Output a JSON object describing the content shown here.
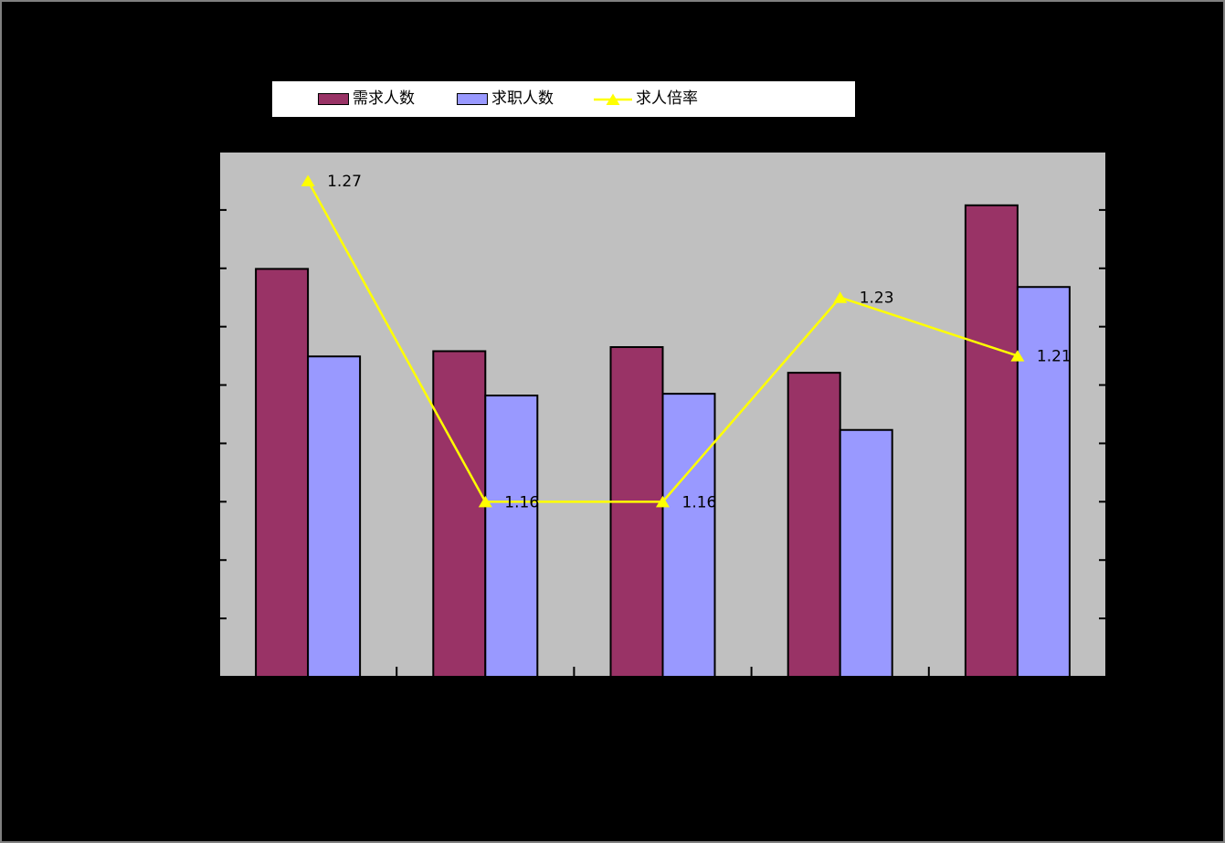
{
  "legend": {
    "items": [
      {
        "label": "需求人数",
        "type": "bar",
        "color": "#993366"
      },
      {
        "label": "求职人数",
        "type": "bar",
        "color": "#9999ff"
      },
      {
        "label": "求人倍率",
        "type": "line",
        "color": "#ffff00"
      }
    ]
  },
  "chart_data": {
    "type": "combo",
    "categories": [
      "",
      "",
      "",
      "",
      ""
    ],
    "series": [
      {
        "name": "需求人数",
        "type": "bar",
        "axis": "left",
        "color": "#993366",
        "values": [
          6.99,
          5.58,
          5.65,
          5.21,
          8.08
        ]
      },
      {
        "name": "求职人数",
        "type": "bar",
        "axis": "left",
        "color": "#9999ff",
        "values": [
          5.49,
          4.82,
          4.85,
          4.23,
          6.68
        ]
      },
      {
        "name": "求人倍率",
        "type": "line",
        "axis": "right",
        "color": "#ffff00",
        "marker": "triangle",
        "values": [
          1.27,
          1.16,
          1.16,
          1.23,
          1.21
        ],
        "point_labels": [
          "1.27",
          "1.16",
          "1.16",
          "1.23",
          "1.21"
        ]
      }
    ],
    "axes": {
      "left": {
        "min": 0,
        "max": 9,
        "tick_count": 10,
        "labels_visible": false
      },
      "right": {
        "min": 1.1,
        "max": 1.28,
        "tick_count": 10,
        "labels_visible": false
      },
      "bottom": {
        "boundary_tick_count": 4,
        "labels_visible": false
      }
    },
    "grid": false,
    "legend_position": "top",
    "colors": {
      "canvas_bg": "#000000",
      "plot_bg": "#c0c0c0",
      "axis_line": "#000000",
      "bar_outline": "#000000",
      "point_label_text": "#000000",
      "legend_bg": "#ffffff",
      "outer_border": "#808080"
    }
  }
}
